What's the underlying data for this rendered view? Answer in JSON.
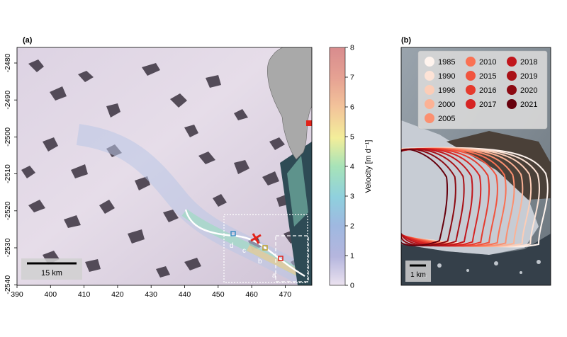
{
  "panel_a": {
    "label": "(a)",
    "x_ticks": [
      "390",
      "400",
      "410",
      "420",
      "430",
      "440",
      "450",
      "460",
      "470"
    ],
    "y_ticks": [
      "-2480",
      "-2490",
      "-2500",
      "-2510",
      "-2520",
      "-2530",
      "-2540"
    ],
    "scale_bar": "15 km",
    "point_labels": [
      "a",
      "b",
      "c",
      "d"
    ],
    "colorbar": {
      "label": "Velocity [m d⁻¹]",
      "ticks": [
        "0",
        "1",
        "2",
        "3",
        "4",
        "5",
        "6",
        "7",
        "8"
      ],
      "range": [
        0,
        8
      ]
    }
  },
  "panel_b": {
    "label": "(b)",
    "scale_bar": "1 km",
    "legend": [
      {
        "year": "1985",
        "color": "#fff4ee"
      },
      {
        "year": "1990",
        "color": "#fde3d6"
      },
      {
        "year": "1996",
        "color": "#fccdb7"
      },
      {
        "year": "2000",
        "color": "#fcb295"
      },
      {
        "year": "2005",
        "color": "#fb9070"
      },
      {
        "year": "2010",
        "color": "#fa7153"
      },
      {
        "year": "2015",
        "color": "#f1543e"
      },
      {
        "year": "2016",
        "color": "#e53a2d"
      },
      {
        "year": "2017",
        "color": "#d62423"
      },
      {
        "year": "2018",
        "color": "#c1161c"
      },
      {
        "year": "2019",
        "color": "#a91016"
      },
      {
        "year": "2020",
        "color": "#8c0a12"
      },
      {
        "year": "2021",
        "color": "#67000d"
      }
    ]
  }
}
